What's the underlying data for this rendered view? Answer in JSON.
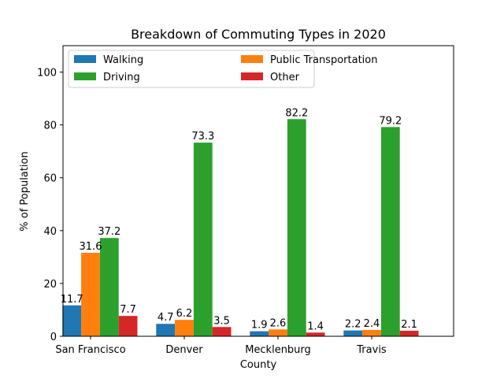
{
  "chart_data": {
    "type": "bar",
    "title": "Breakdown of Commuting Types in 2020",
    "xlabel": "County",
    "ylabel": "% of Population",
    "ylim": [
      0,
      110
    ],
    "yticks": [
      0,
      20,
      40,
      60,
      80,
      100
    ],
    "categories": [
      "San Francisco",
      "Denver",
      "Mecklenburg",
      "Travis"
    ],
    "series": [
      {
        "name": "Walking",
        "color": "#1f77b4",
        "values": [
          11.7,
          4.7,
          1.9,
          2.2
        ]
      },
      {
        "name": "Public Transportation",
        "color": "#ff7f0e",
        "values": [
          31.6,
          6.2,
          2.6,
          2.4
        ]
      },
      {
        "name": "Driving",
        "color": "#2ca02c",
        "values": [
          37.2,
          73.3,
          82.2,
          79.2
        ]
      },
      {
        "name": "Other",
        "color": "#d62728",
        "values": [
          7.7,
          3.5,
          1.4,
          2.1
        ]
      }
    ],
    "legend_position": "top-left",
    "grid": false
  }
}
